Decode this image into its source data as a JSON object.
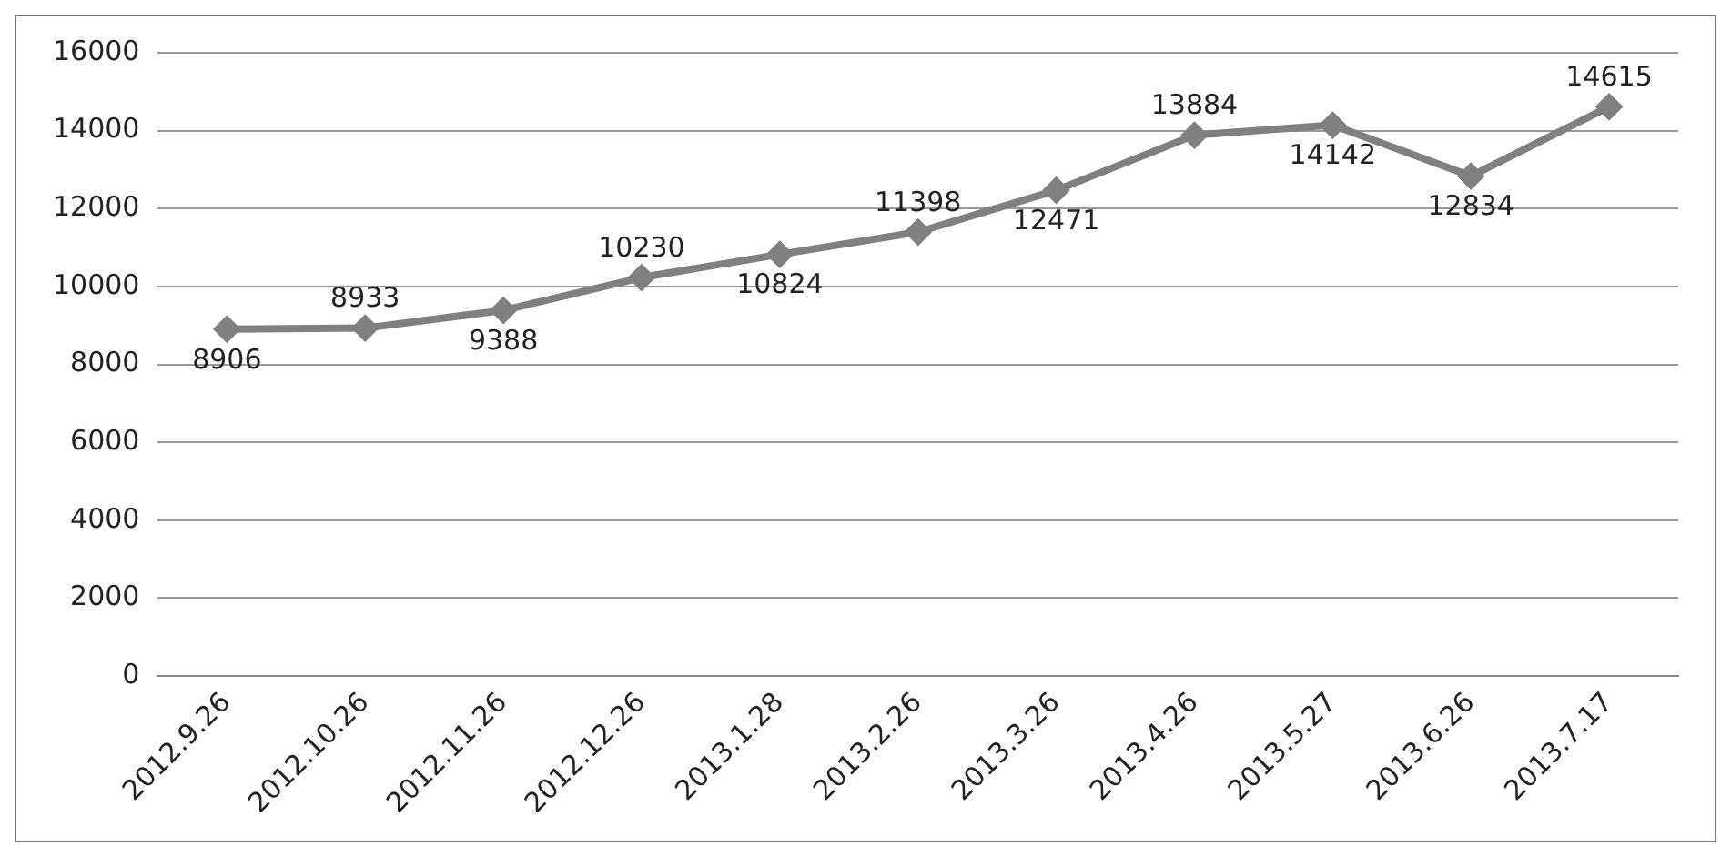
{
  "chart_data": {
    "type": "line",
    "categories": [
      "2012.9.26",
      "2012.10.26",
      "2012.11.26",
      "2012.12.26",
      "2013.1.28",
      "2013.2.26",
      "2013.3.26",
      "2013.4.26",
      "2013.5.27",
      "2013.6.26",
      "2013.7.17"
    ],
    "series": [
      {
        "color": "#808080",
        "values": [
          8906,
          8933,
          9388,
          10230,
          10824,
          11398,
          12471,
          13884,
          14142,
          12834,
          14615
        ]
      }
    ],
    "ylim": [
      0,
      16000
    ],
    "yticks": [
      0,
      2000,
      4000,
      6000,
      8000,
      10000,
      12000,
      14000,
      16000
    ],
    "grid": "y",
    "legend": false,
    "marker": "diamond",
    "line_style": "solid",
    "data_labels": true
  }
}
